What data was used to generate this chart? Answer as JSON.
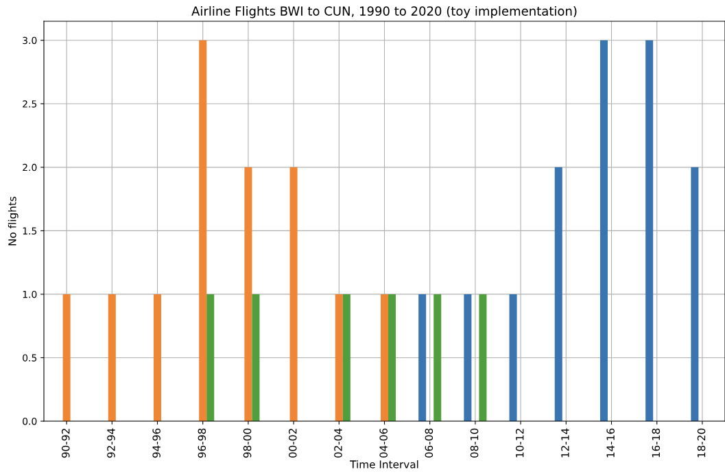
{
  "chart_data": {
    "type": "bar",
    "title": "Airline Flights BWI to CUN, 1990 to 2020 (toy implementation)",
    "xlabel": "Time Interval",
    "ylabel": "No flights",
    "categories": [
      "90-92",
      "92-94",
      "94-96",
      "96-98",
      "98-00",
      "00-02",
      "02-04",
      "04-06",
      "06-08",
      "08-10",
      "10-12",
      "12-14",
      "14-16",
      "16-18",
      "18-20"
    ],
    "series": [
      {
        "color": "#3a75af",
        "values": [
          0,
          0,
          0,
          0,
          0,
          0,
          0,
          0,
          1,
          1,
          1,
          2,
          3,
          3,
          2
        ]
      },
      {
        "color": "#ef8636",
        "values": [
          1,
          1,
          1,
          3,
          2,
          2,
          1,
          1,
          0,
          0,
          0,
          0,
          0,
          0,
          0
        ]
      },
      {
        "color": "#519e3e",
        "values": [
          0,
          0,
          0,
          1,
          1,
          0,
          1,
          1,
          1,
          1,
          0,
          0,
          0,
          0,
          0
        ]
      }
    ],
    "ylim": [
      0,
      3.15
    ],
    "yticks": [
      {
        "value": 0,
        "label": "0.0"
      },
      {
        "value": 0.5,
        "label": "0.5"
      },
      {
        "value": 1,
        "label": "1.0"
      },
      {
        "value": 1.5,
        "label": "1.5"
      },
      {
        "value": 2,
        "label": "2.0"
      },
      {
        "value": 2.5,
        "label": "2.5"
      },
      {
        "value": 3,
        "label": "3.0"
      }
    ],
    "grid": true
  }
}
